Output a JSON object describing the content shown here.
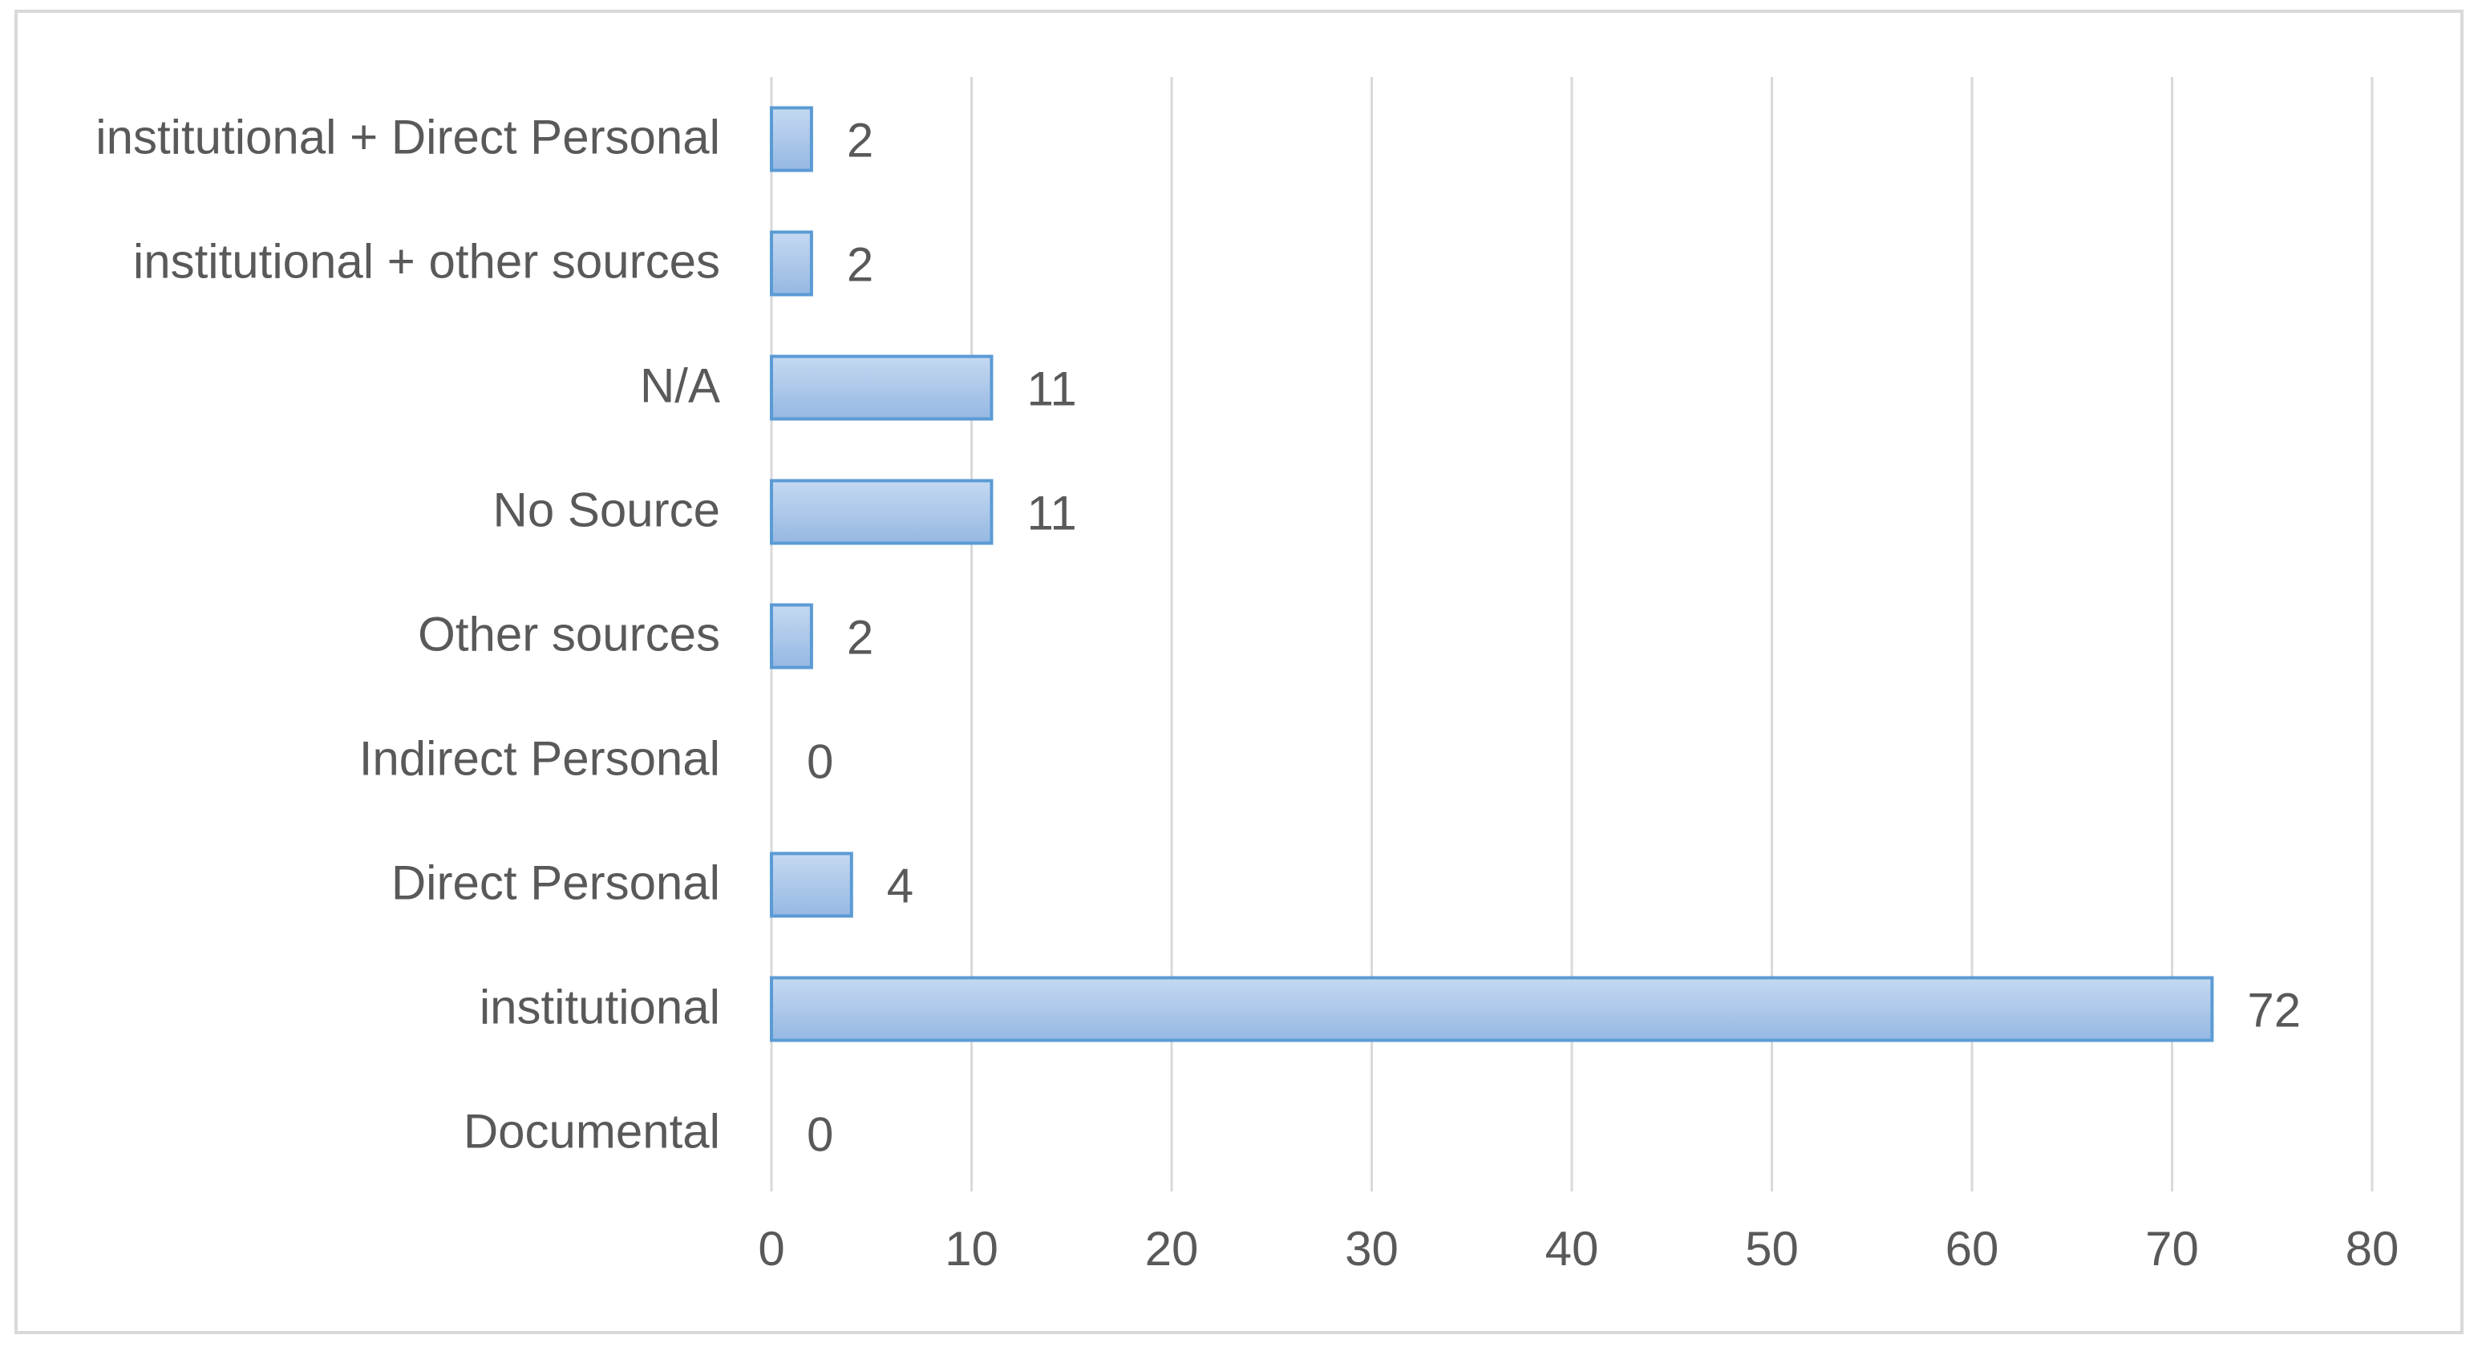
{
  "chart_data": {
    "type": "bar",
    "orientation": "horizontal",
    "title": "",
    "xlabel": "",
    "ylabel": "",
    "categories": [
      "institutional + Direct Personal",
      "institutional + other sources",
      "N/A",
      "No Source",
      "Other sources",
      "Indirect Personal",
      "Direct Personal",
      "institutional",
      "Documental"
    ],
    "values": [
      2,
      2,
      11,
      11,
      2,
      0,
      4,
      72,
      0
    ],
    "data_labels": [
      "2",
      "2",
      "11",
      "11",
      "2",
      "0",
      "4",
      "72",
      "0"
    ],
    "xlim": [
      0,
      80
    ],
    "x_ticks": [
      0,
      10,
      20,
      30,
      40,
      50,
      60,
      70,
      80
    ],
    "x_tick_labels": [
      "0",
      "10",
      "20",
      "30",
      "40",
      "50",
      "60",
      "70",
      "80"
    ],
    "grid": "vertical",
    "legend": "none",
    "colors": {
      "bar_fill_top": "#c5d9f1",
      "bar_fill_bottom": "#95b8e3",
      "bar_stroke": "#5b9bd5",
      "grid": "#d9d9d9",
      "text": "#595959"
    }
  }
}
